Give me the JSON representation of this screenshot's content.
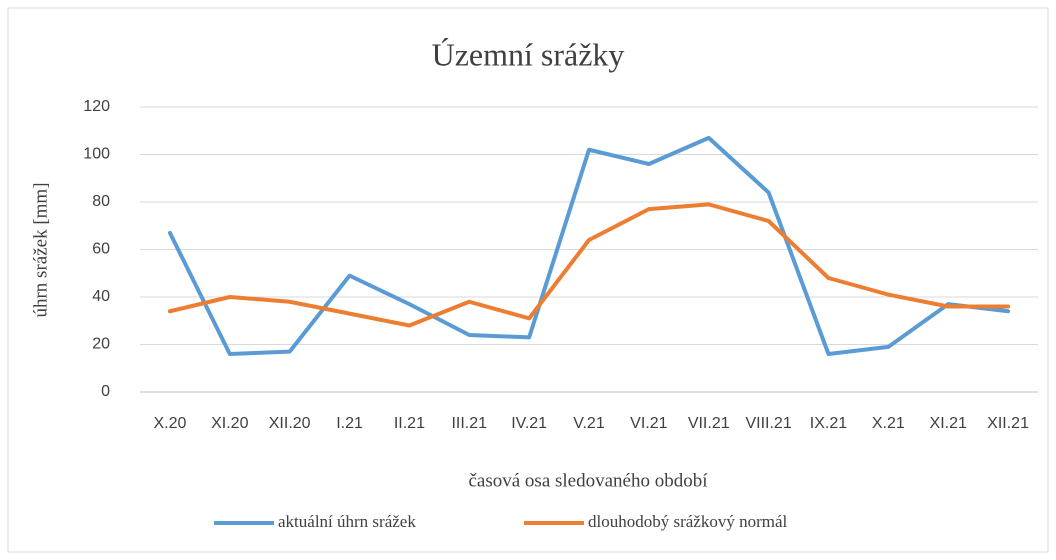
{
  "chart_data": {
    "type": "line",
    "title": "Územní srážky",
    "x_label": "časová osa sledovaného období",
    "y_label": "úhrn srážek [mm]",
    "categories": [
      "X.20",
      "XI.20",
      "XII.20",
      "I.21",
      "II.21",
      "III.21",
      "IV.21",
      "V.21",
      "VI.21",
      "VII.21",
      "VIII.21",
      "IX.21",
      "X.21",
      "XI.21",
      "XII.21"
    ],
    "series": [
      {
        "name": "aktuální úhrn srážek",
        "color": "#5b9bd5",
        "values": [
          67,
          16,
          17,
          49,
          37,
          24,
          23,
          102,
          96,
          107,
          84,
          16,
          19,
          37,
          34
        ]
      },
      {
        "name": "dlouhodobý srážkový normál",
        "color": "#ed7d31",
        "values": [
          34,
          40,
          38,
          33,
          28,
          38,
          31,
          64,
          77,
          79,
          72,
          48,
          41,
          36,
          36
        ]
      }
    ],
    "ylim": [
      0,
      120
    ],
    "yticks": [
      0,
      20,
      40,
      60,
      80,
      100,
      120
    ],
    "grid": true,
    "legend": "bottom"
  }
}
